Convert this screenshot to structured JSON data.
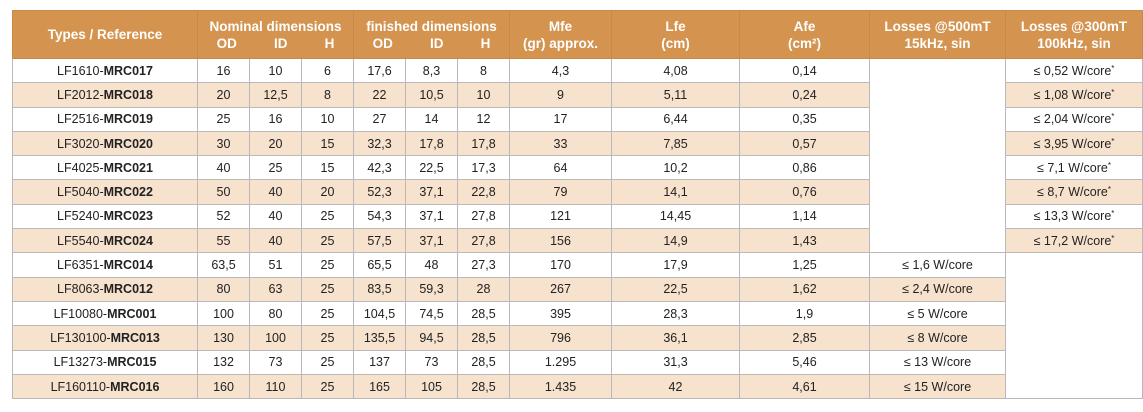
{
  "header": {
    "types": "Types / Reference",
    "nominal": "Nominal dimensions",
    "finished": "finished dimensions",
    "od": "OD",
    "id": "ID",
    "h": "H",
    "mfe_1": "Mfe",
    "mfe_2": "(gr) approx.",
    "lfe_1": "Lfe",
    "lfe_2": "(cm)",
    "afe_1": "Afe",
    "afe_2": "(cm²)",
    "l500_1": "Losses @500mT",
    "l500_2": "15kHz, sin",
    "l300_1": "Losses @300mT",
    "l300_2": "100kHz, sin"
  },
  "rows": [
    {
      "ref_prefix": "LF1610-",
      "ref_code": "MRC017",
      "od": "16",
      "id": "10",
      "h": "6",
      "fod": "17,6",
      "fid": "8,3",
      "fh": "8",
      "mfe": "4,3",
      "lfe": "4,08",
      "afe": "0,14",
      "l500": "",
      "l300": "≤ 0,52 W/core",
      "star": "*"
    },
    {
      "ref_prefix": "LF2012-",
      "ref_code": "MRC018",
      "od": "20",
      "id": "12,5",
      "h": "8",
      "fod": "22",
      "fid": "10,5",
      "fh": "10",
      "mfe": "9",
      "lfe": "5,11",
      "afe": "0,24",
      "l500": "",
      "l300": "≤ 1,08 W/core",
      "star": "*"
    },
    {
      "ref_prefix": "LF2516-",
      "ref_code": "MRC019",
      "od": "25",
      "id": "16",
      "h": "10",
      "fod": "27",
      "fid": "14",
      "fh": "12",
      "mfe": "17",
      "lfe": "6,44",
      "afe": "0,35",
      "l500": "",
      "l300": "≤ 2,04 W/core",
      "star": "*"
    },
    {
      "ref_prefix": "LF3020-",
      "ref_code": "MRC020",
      "od": "30",
      "id": "20",
      "h": "15",
      "fod": "32,3",
      "fid": "17,8",
      "fh": "17,8",
      "mfe": "33",
      "lfe": "7,85",
      "afe": "0,57",
      "l500": "",
      "l300": "≤ 3,95 W/core",
      "star": "*"
    },
    {
      "ref_prefix": "LF4025-",
      "ref_code": "MRC021",
      "od": "40",
      "id": "25",
      "h": "15",
      "fod": "42,3",
      "fid": "22,5",
      "fh": "17,3",
      "mfe": "64",
      "lfe": "10,2",
      "afe": "0,86",
      "l500": "",
      "l300": "≤ 7,1 W/core",
      "star": "*"
    },
    {
      "ref_prefix": "LF5040-",
      "ref_code": "MRC022",
      "od": "50",
      "id": "40",
      "h": "20",
      "fod": "52,3",
      "fid": "37,1",
      "fh": "22,8",
      "mfe": "79",
      "lfe": "14,1",
      "afe": "0,76",
      "l500": "",
      "l300": "≤ 8,7 W/core",
      "star": "*"
    },
    {
      "ref_prefix": "LF5240-",
      "ref_code": "MRC023",
      "od": "52",
      "id": "40",
      "h": "25",
      "fod": "54,3",
      "fid": "37,1",
      "fh": "27,8",
      "mfe": "121",
      "lfe": "14,45",
      "afe": "1,14",
      "l500": "",
      "l300": "≤ 13,3 W/core",
      "star": "*"
    },
    {
      "ref_prefix": "LF5540-",
      "ref_code": "MRC024",
      "od": "55",
      "id": "40",
      "h": "25",
      "fod": "57,5",
      "fid": "37,1",
      "fh": "27,8",
      "mfe": "156",
      "lfe": "14,9",
      "afe": "1,43",
      "l500": "",
      "l300": "≤ 17,2 W/core",
      "star": "*"
    },
    {
      "ref_prefix": "LF6351-",
      "ref_code": "MRC014",
      "od": "63,5",
      "id": "51",
      "h": "25",
      "fod": "65,5",
      "fid": "48",
      "fh": "27,3",
      "mfe": "170",
      "lfe": "17,9",
      "afe": "1,25",
      "l500": "≤ 1,6 W/core",
      "l300": "",
      "star": ""
    },
    {
      "ref_prefix": "LF8063-",
      "ref_code": "MRC012",
      "od": "80",
      "id": "63",
      "h": "25",
      "fod": "83,5",
      "fid": "59,3",
      "fh": "28",
      "mfe": "267",
      "lfe": "22,5",
      "afe": "1,62",
      "l500": "≤ 2,4 W/core",
      "l300": "",
      "star": ""
    },
    {
      "ref_prefix": "LF10080-",
      "ref_code": "MRC001",
      "od": "100",
      "id": "80",
      "h": "25",
      "fod": "104,5",
      "fid": "74,5",
      "fh": "28,5",
      "mfe": "395",
      "lfe": "28,3",
      "afe": "1,9",
      "l500": "≤ 5 W/core",
      "l300": "",
      "star": ""
    },
    {
      "ref_prefix": "LF130100-",
      "ref_code": "MRC013",
      "od": "130",
      "id": "100",
      "h": "25",
      "fod": "135,5",
      "fid": "94,5",
      "fh": "28,5",
      "mfe": "796",
      "lfe": "36,1",
      "afe": "2,85",
      "l500": "≤ 8 W/core",
      "l300": "",
      "star": ""
    },
    {
      "ref_prefix": "LF13273-",
      "ref_code": "MRC015",
      "od": "132",
      "id": "73",
      "h": "25",
      "fod": "137",
      "fid": "73",
      "fh": "28,5",
      "mfe": "1.295",
      "lfe": "31,3",
      "afe": "5,46",
      "l500": "≤ 13 W/core",
      "l300": "",
      "star": ""
    },
    {
      "ref_prefix": "LF160110-",
      "ref_code": "MRC016",
      "od": "160",
      "id": "110",
      "h": "25",
      "fod": "165",
      "fid": "105",
      "fh": "28,5",
      "mfe": "1.435",
      "lfe": "42",
      "afe": "4,61",
      "l500": "≤ 15 W/core",
      "l300": "",
      "star": ""
    }
  ]
}
